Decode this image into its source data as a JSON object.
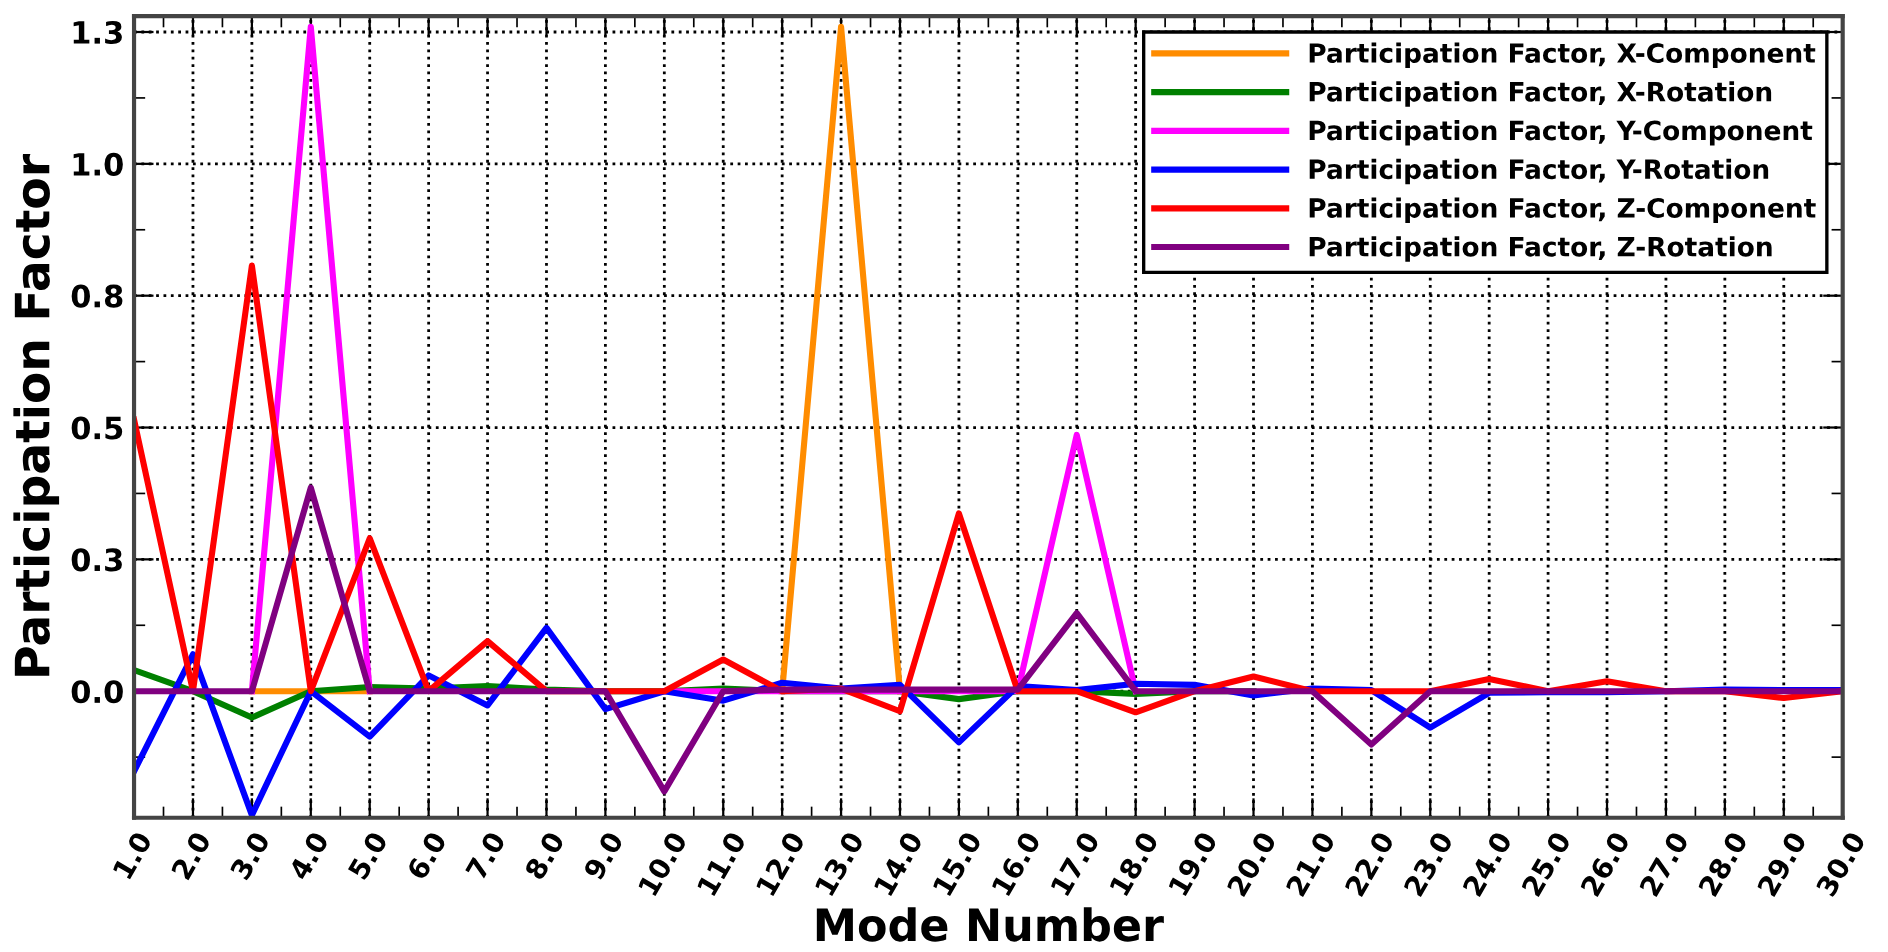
{
  "chart_data": {
    "type": "line",
    "xlabel": "Mode Number",
    "ylabel": "Participation Factor",
    "x": [
      1,
      2,
      3,
      4,
      5,
      6,
      7,
      8,
      9,
      10,
      11,
      12,
      13,
      14,
      15,
      16,
      17,
      18,
      19,
      20,
      21,
      22,
      23,
      24,
      25,
      26,
      27,
      28,
      29,
      30
    ],
    "xlim": [
      1,
      30
    ],
    "xticks": [
      {
        "value": 1,
        "label": "1.0"
      },
      {
        "value": 2,
        "label": "2.0"
      },
      {
        "value": 3,
        "label": "3.0"
      },
      {
        "value": 4,
        "label": "4.0"
      },
      {
        "value": 5,
        "label": "5.0"
      },
      {
        "value": 6,
        "label": "6.0"
      },
      {
        "value": 7,
        "label": "7.0"
      },
      {
        "value": 8,
        "label": "8.0"
      },
      {
        "value": 9,
        "label": "9.0"
      },
      {
        "value": 10,
        "label": "10.0"
      },
      {
        "value": 11,
        "label": "11.0"
      },
      {
        "value": 12,
        "label": "12.0"
      },
      {
        "value": 13,
        "label": "13.0"
      },
      {
        "value": 14,
        "label": "14.0"
      },
      {
        "value": 15,
        "label": "15.0"
      },
      {
        "value": 16,
        "label": "16.0"
      },
      {
        "value": 17,
        "label": "17.0"
      },
      {
        "value": 18,
        "label": "18.0"
      },
      {
        "value": 19,
        "label": "19.0"
      },
      {
        "value": 20,
        "label": "20.0"
      },
      {
        "value": 21,
        "label": "21.0"
      },
      {
        "value": 22,
        "label": "22.0"
      },
      {
        "value": 23,
        "label": "23.0"
      },
      {
        "value": 24,
        "label": "24.0"
      },
      {
        "value": 25,
        "label": "25.0"
      },
      {
        "value": 26,
        "label": "26.0"
      },
      {
        "value": 27,
        "label": "27.0"
      },
      {
        "value": 28,
        "label": "28.0"
      },
      {
        "value": 29,
        "label": "29.0"
      },
      {
        "value": 30,
        "label": "30.0"
      }
    ],
    "ylim": [
      -0.24,
      1.28
    ],
    "yticks": [
      {
        "value": 0,
        "label": "0.0"
      },
      {
        "value": 0.25,
        "label": "0.3"
      },
      {
        "value": 0.5,
        "label": "0.5"
      },
      {
        "value": 0.75,
        "label": "0.8"
      },
      {
        "value": 1.0,
        "label": "1.0"
      },
      {
        "value": 1.25,
        "label": "1.3"
      }
    ],
    "grid": true,
    "legend": "top right",
    "marker": "none",
    "line_style": "solid",
    "series": [
      {
        "name": "Participation Factor, X-Component",
        "color": "#ff8c00",
        "values": [
          null,
          null,
          0,
          0,
          0,
          null,
          null,
          null,
          null,
          null,
          null,
          0,
          1.26,
          0,
          null,
          null,
          null,
          null,
          null,
          null,
          null,
          null,
          null,
          null,
          null,
          null,
          null,
          null,
          null,
          null
        ]
      },
      {
        "name": "Participation Factor, X-Rotation",
        "color": "#008000",
        "values": [
          0.04,
          0,
          -0.05,
          0,
          0.008,
          0.005,
          0.01,
          0.003,
          0,
          0,
          0.005,
          0,
          0,
          0,
          -0.015,
          0,
          0,
          -0.005,
          0,
          0,
          null,
          null,
          null,
          null,
          null,
          null,
          null,
          null,
          null,
          null
        ]
      },
      {
        "name": "Participation Factor, Y-Component",
        "color": "#ff00ff",
        "values": [
          null,
          null,
          0,
          1.26,
          0,
          null,
          null,
          null,
          null,
          0,
          0,
          0,
          0,
          0,
          0,
          0,
          0.486,
          0,
          null,
          null,
          null,
          null,
          null,
          null,
          null,
          null,
          null,
          null,
          null,
          null
        ]
      },
      {
        "name": "Participation Factor, Y-Rotation",
        "color": "#0000ff",
        "values": [
          -0.152,
          0.07,
          -0.235,
          0,
          -0.086,
          0.03,
          -0.027,
          0.12,
          -0.034,
          0,
          -0.018,
          0.016,
          0.005,
          0.012,
          -0.097,
          0.01,
          0.002,
          0.014,
          0.012,
          -0.008,
          0.005,
          0.002,
          -0.069,
          -0.003,
          -0.002,
          -0.002,
          0,
          0.003,
          0.002,
          0.002
        ]
      },
      {
        "name": "Participation Factor, Z-Component",
        "color": "#ff0000",
        "values": [
          0.515,
          0,
          0.807,
          0,
          0.29,
          0,
          0.095,
          0,
          0,
          0,
          0.06,
          0,
          0.005,
          -0.038,
          0.337,
          0,
          0,
          -0.04,
          0,
          0.028,
          0,
          0,
          0,
          0.023,
          0,
          0.019,
          0,
          0,
          -0.013,
          0
        ]
      },
      {
        "name": "Participation Factor, Z-Rotation",
        "color": "#800080",
        "values": [
          0,
          0,
          0,
          0.386,
          0,
          0,
          0,
          0,
          0,
          -0.19,
          0,
          0.003,
          0.003,
          0.003,
          0.003,
          0.003,
          0.148,
          0,
          0,
          0,
          0,
          -0.101,
          0,
          0,
          0,
          0,
          0,
          0,
          0,
          0
        ]
      }
    ]
  }
}
